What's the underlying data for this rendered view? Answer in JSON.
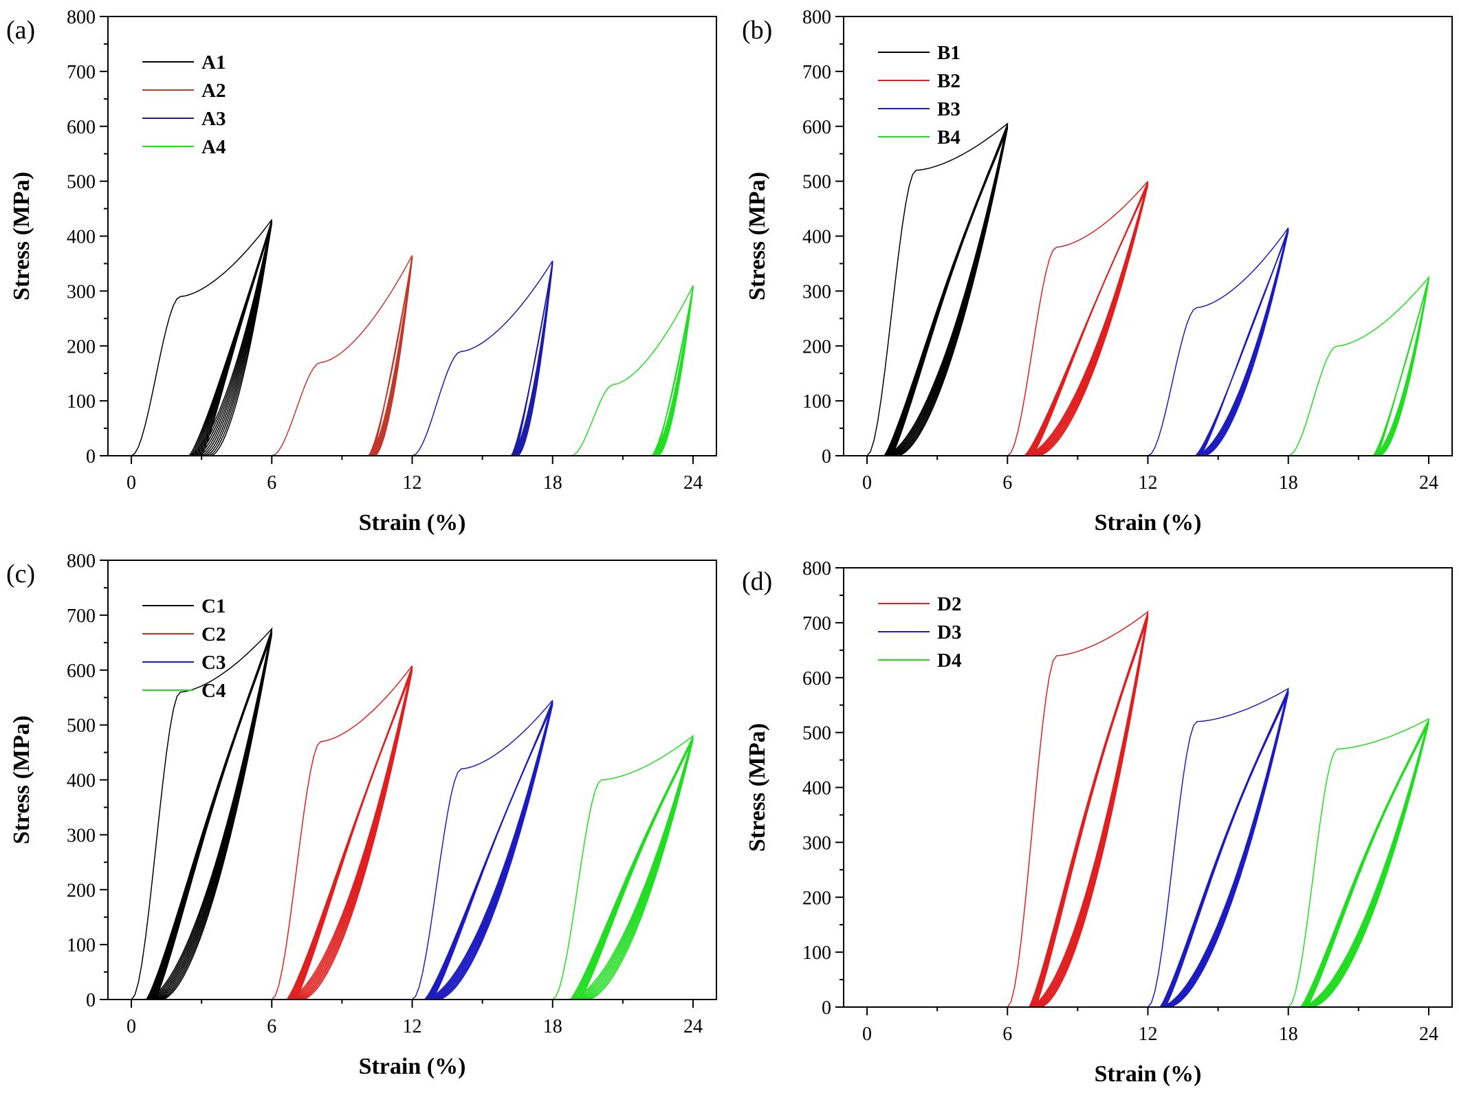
{
  "chart_data": [
    {
      "type": "line",
      "panel_label": "(a)",
      "xlabel": "Strain (%)",
      "ylabel": "Stress (MPa)",
      "xlim": [
        -1,
        25
      ],
      "ylim": [
        0,
        800
      ],
      "xticks": [
        0,
        6,
        12,
        18,
        24
      ],
      "xtick_labels": [
        "0",
        "6",
        "12",
        "18",
        "24"
      ],
      "yticks": [
        0,
        100,
        200,
        300,
        400,
        500,
        600,
        700,
        800
      ],
      "ytick_labels": [
        "0",
        "100",
        "200",
        "300",
        "400",
        "500",
        "600",
        "700",
        "800"
      ],
      "legend_position": "top-left",
      "series": [
        {
          "name": "A1",
          "color": "#000000",
          "start": 0,
          "end": 6,
          "peak": 430,
          "knee": 290,
          "residual": 2.4,
          "cycles": 10,
          "spread": 1.0
        },
        {
          "name": "A2",
          "color": "#c0392b",
          "start": 6,
          "end": 12,
          "peak": 365,
          "knee": 170,
          "residual": 10.1,
          "cycles": 8,
          "spread": 0.3
        },
        {
          "name": "A3",
          "color": "#1c1ca8",
          "start": 12,
          "end": 18,
          "peak": 355,
          "knee": 190,
          "residual": 16.2,
          "cycles": 8,
          "spread": 0.3
        },
        {
          "name": "A4",
          "color": "#22dd22",
          "start": 18.8,
          "end": 24,
          "peak": 310,
          "knee": 130,
          "residual": 22.2,
          "cycles": 8,
          "spread": 0.3
        }
      ]
    },
    {
      "type": "line",
      "panel_label": "(b)",
      "xlabel": "Strain (%)",
      "ylabel": "Stress (MPa)",
      "xlim": [
        -1,
        25
      ],
      "ylim": [
        0,
        800
      ],
      "xticks": [
        0,
        6,
        12,
        18,
        24
      ],
      "xtick_labels": [
        "0",
        "6",
        "12",
        "18",
        "24"
      ],
      "yticks": [
        0,
        100,
        200,
        300,
        400,
        500,
        600,
        700,
        800
      ],
      "ytick_labels": [
        "0",
        "100",
        "200",
        "300",
        "400",
        "500",
        "600",
        "700",
        "800"
      ],
      "legend_position": "top-left",
      "series": [
        {
          "name": "B1",
          "color": "#000000",
          "start": 0,
          "end": 6,
          "peak": 605,
          "knee": 520,
          "residual": 0.7,
          "cycles": 10,
          "spread": 0.6
        },
        {
          "name": "B2",
          "color": "#e02020",
          "start": 6,
          "end": 12,
          "peak": 500,
          "knee": 380,
          "residual": 6.7,
          "cycles": 10,
          "spread": 0.6
        },
        {
          "name": "B3",
          "color": "#1c1cc0",
          "start": 12,
          "end": 18,
          "peak": 415,
          "knee": 270,
          "residual": 14.0,
          "cycles": 8,
          "spread": 0.4
        },
        {
          "name": "B4",
          "color": "#22dd22",
          "start": 18,
          "end": 24,
          "peak": 325,
          "knee": 200,
          "residual": 21.6,
          "cycles": 8,
          "spread": 0.3
        }
      ]
    },
    {
      "type": "line",
      "panel_label": "(c)",
      "xlabel": "Strain (%)",
      "ylabel": "Stress (MPa)",
      "xlim": [
        -1,
        25
      ],
      "ylim": [
        0,
        800
      ],
      "xticks": [
        0,
        6,
        12,
        18,
        24
      ],
      "xtick_labels": [
        "0",
        "6",
        "12",
        "18",
        "24"
      ],
      "yticks": [
        0,
        100,
        200,
        300,
        400,
        500,
        600,
        700,
        800
      ],
      "ytick_labels": [
        "0",
        "100",
        "200",
        "300",
        "400",
        "500",
        "600",
        "700",
        "800"
      ],
      "legend_position": "top-left",
      "series": [
        {
          "name": "C1",
          "color": "#000000",
          "start": 0,
          "end": 6,
          "peak": 675,
          "knee": 560,
          "residual": 0.6,
          "cycles": 10,
          "spread": 0.7
        },
        {
          "name": "C2",
          "color": "#e02020",
          "start": 6,
          "end": 12,
          "peak": 608,
          "knee": 470,
          "residual": 6.6,
          "cycles": 10,
          "spread": 0.7
        },
        {
          "name": "C3",
          "color": "#1c1cc0",
          "start": 12,
          "end": 18,
          "peak": 545,
          "knee": 420,
          "residual": 12.5,
          "cycles": 10,
          "spread": 0.6
        },
        {
          "name": "C4",
          "color": "#22dd22",
          "start": 18,
          "end": 24,
          "peak": 480,
          "knee": 400,
          "residual": 18.7,
          "cycles": 10,
          "spread": 0.8
        }
      ]
    },
    {
      "type": "line",
      "panel_label": "(d)",
      "xlabel": "Strain (%)",
      "ylabel": "Stress (MPa)",
      "xlim": [
        -1,
        25
      ],
      "ylim": [
        0,
        800
      ],
      "xticks": [
        0,
        6,
        12,
        18,
        24
      ],
      "xtick_labels": [
        "0",
        "6",
        "12",
        "18",
        "24"
      ],
      "yticks": [
        0,
        100,
        200,
        300,
        400,
        500,
        600,
        700,
        800
      ],
      "ytick_labels": [
        "0",
        "100",
        "200",
        "300",
        "400",
        "500",
        "600",
        "700",
        "800"
      ],
      "legend_position": "top-left",
      "series": [
        {
          "name": "D2",
          "color": "#e02020",
          "start": 6,
          "end": 12,
          "peak": 720,
          "knee": 640,
          "residual": 6.9,
          "cycles": 10,
          "spread": 0.5
        },
        {
          "name": "D3",
          "color": "#1c1cc0",
          "start": 12,
          "end": 18,
          "peak": 580,
          "knee": 520,
          "residual": 12.5,
          "cycles": 10,
          "spread": 0.4
        },
        {
          "name": "D4",
          "color": "#22dd22",
          "start": 18,
          "end": 24,
          "peak": 525,
          "knee": 470,
          "residual": 18.5,
          "cycles": 10,
          "spread": 0.5
        }
      ]
    }
  ]
}
